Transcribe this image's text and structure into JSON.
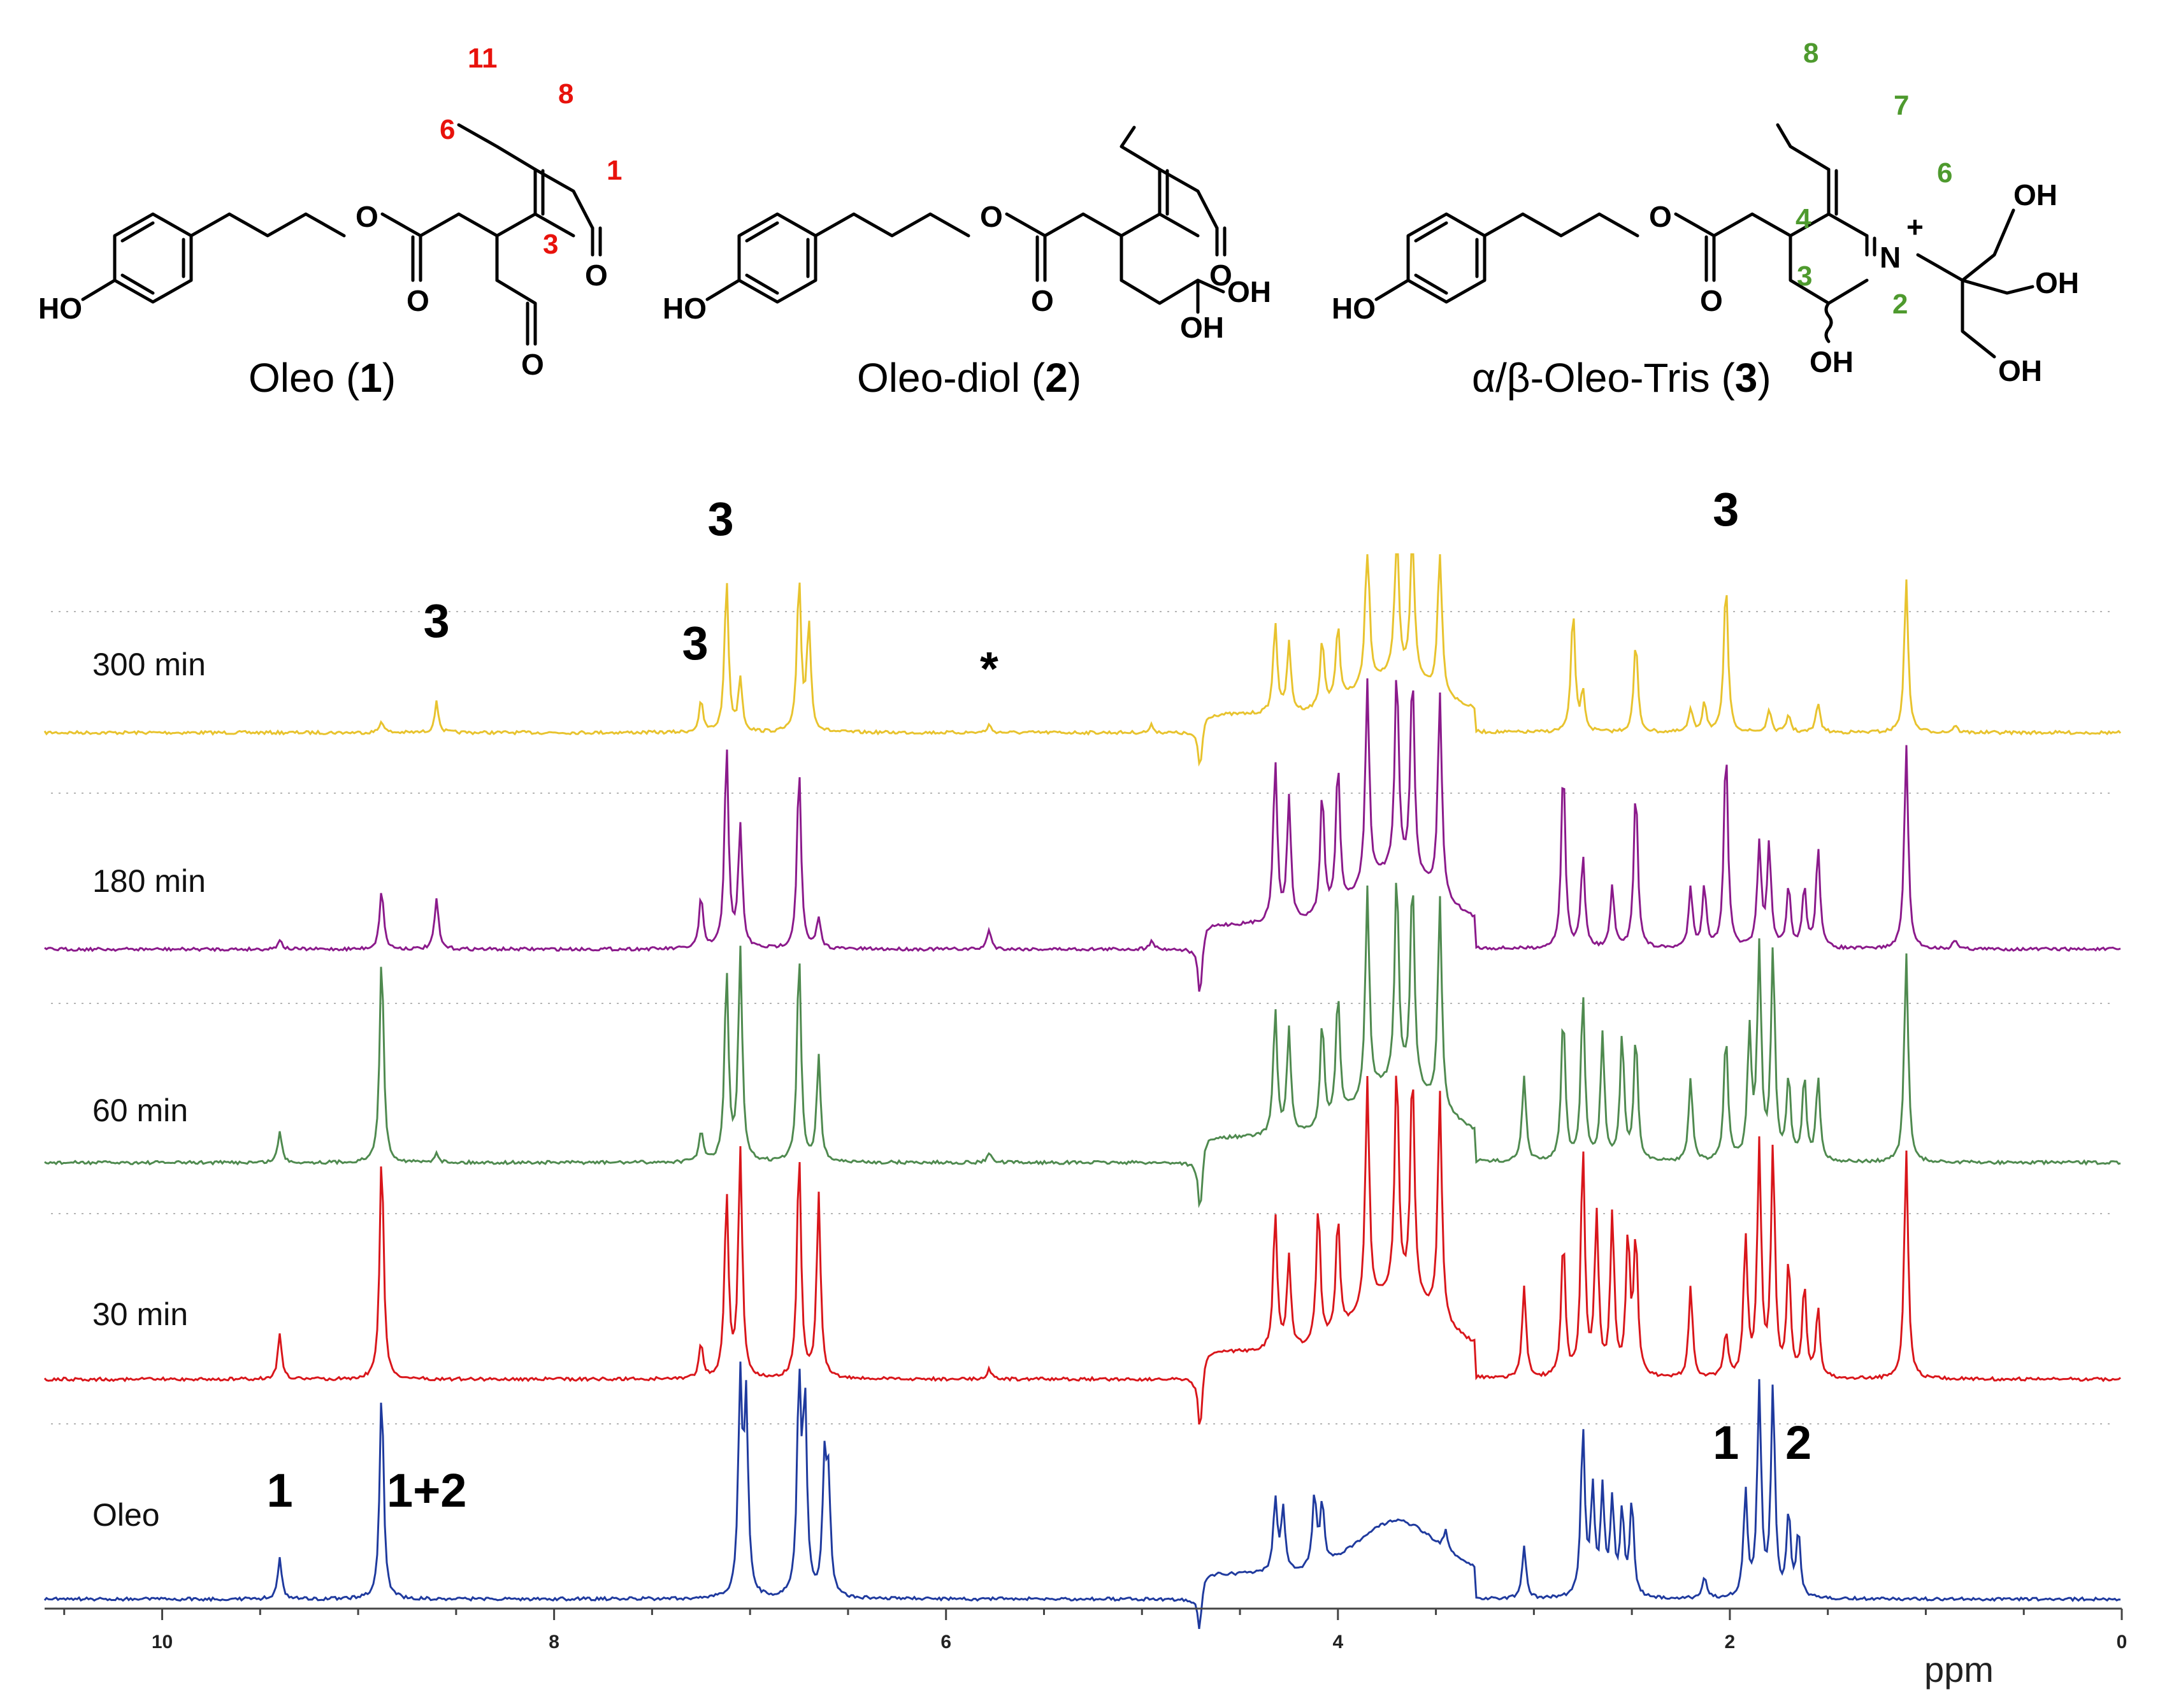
{
  "structures": [
    {
      "label_pre": "Oleo (",
      "label_num": "1",
      "label_post": ")"
    },
    {
      "label_pre": "Oleo-diol (",
      "label_num": "2",
      "label_post": ")"
    },
    {
      "label_pre": "α/β-Oleo-Tris (",
      "label_num": "3",
      "label_post": ")"
    }
  ],
  "atoms": {
    "ho": "HO",
    "oh": "OH",
    "o": "O",
    "n": "N",
    "plus": "+"
  },
  "oleo_numbering": [
    "11",
    "8",
    "6",
    "1",
    "3"
  ],
  "tris_numbering": [
    "8",
    "7",
    "6",
    "4",
    "3",
    "2"
  ],
  "colors": {
    "numbering_red": "#e8120c",
    "numbering_green": "#4e9a2e",
    "trace_300": "#e8c32e",
    "trace_180": "#8b1a8b",
    "trace_60": "#4f8a4f",
    "trace_30": "#d9161b",
    "trace_oleo": "#1f3a9e"
  },
  "chart_data": {
    "type": "line",
    "xlabel": "ppm",
    "xlim": [
      10.6,
      0
    ],
    "x_reversed": true,
    "x_ticks": [
      "10",
      "8",
      "6",
      "4",
      "2",
      "0"
    ],
    "x_tick_values": [
      10,
      8,
      6,
      4,
      2,
      0
    ],
    "grid": "dotted horizontal",
    "series": [
      {
        "name": "300 min",
        "color": "#e8c32e",
        "peaks": [
          [
            8.88,
            0.08
          ],
          [
            8.6,
            0.2
          ],
          [
            7.25,
            0.2
          ],
          [
            7.12,
            1.0
          ],
          [
            7.05,
            0.35
          ],
          [
            6.75,
            1.0
          ],
          [
            6.7,
            0.7
          ],
          [
            5.78,
            0.05
          ],
          [
            4.95,
            0.05
          ],
          [
            4.7,
            -0.3
          ],
          [
            4.32,
            0.6
          ],
          [
            4.25,
            0.45
          ],
          [
            4.08,
            0.45
          ],
          [
            4.0,
            0.5
          ],
          [
            3.85,
            1.0
          ],
          [
            3.7,
            1.0
          ],
          [
            3.62,
            1.0
          ],
          [
            3.48,
            1.0
          ],
          [
            2.8,
            0.8
          ],
          [
            2.75,
            0.25
          ],
          [
            2.48,
            0.6
          ],
          [
            2.2,
            0.15
          ],
          [
            2.13,
            0.2
          ],
          [
            2.02,
            1.0
          ],
          [
            1.8,
            0.15
          ],
          [
            1.7,
            0.12
          ],
          [
            1.55,
            0.2
          ],
          [
            1.1,
            1.0
          ],
          [
            0.85,
            0.05
          ]
        ]
      },
      {
        "name": "180 min",
        "color": "#8b1a8b",
        "peaks": [
          [
            9.4,
            0.05
          ],
          [
            8.88,
            0.3
          ],
          [
            8.6,
            0.25
          ],
          [
            7.25,
            0.25
          ],
          [
            7.12,
            1.0
          ],
          [
            7.05,
            0.6
          ],
          [
            6.75,
            0.9
          ],
          [
            6.65,
            0.15
          ],
          [
            5.78,
            0.1
          ],
          [
            4.95,
            0.05
          ],
          [
            4.7,
            -0.3
          ],
          [
            4.32,
            0.8
          ],
          [
            4.25,
            0.6
          ],
          [
            4.08,
            0.6
          ],
          [
            4.0,
            0.7
          ],
          [
            3.85,
            1.0
          ],
          [
            3.7,
            1.0
          ],
          [
            3.62,
            1.0
          ],
          [
            3.48,
            1.0
          ],
          [
            2.85,
            0.9
          ],
          [
            2.75,
            0.45
          ],
          [
            2.6,
            0.3
          ],
          [
            2.48,
            0.8
          ],
          [
            2.2,
            0.3
          ],
          [
            2.13,
            0.3
          ],
          [
            2.02,
            1.0
          ],
          [
            1.85,
            0.5
          ],
          [
            1.8,
            0.5
          ],
          [
            1.7,
            0.3
          ],
          [
            1.62,
            0.3
          ],
          [
            1.55,
            0.5
          ],
          [
            1.1,
            1.0
          ],
          [
            0.85,
            0.05
          ]
        ]
      },
      {
        "name": "60 min",
        "color": "#4f8a4f",
        "peaks": [
          [
            9.4,
            0.15
          ],
          [
            8.88,
            1.0
          ],
          [
            8.6,
            0.05
          ],
          [
            7.25,
            0.15
          ],
          [
            7.12,
            0.9
          ],
          [
            7.05,
            1.0
          ],
          [
            6.75,
            1.0
          ],
          [
            6.65,
            0.5
          ],
          [
            5.78,
            0.05
          ],
          [
            4.7,
            -0.3
          ],
          [
            4.32,
            0.6
          ],
          [
            4.25,
            0.5
          ],
          [
            4.08,
            0.5
          ],
          [
            4.0,
            0.6
          ],
          [
            3.85,
            1.0
          ],
          [
            3.7,
            1.0
          ],
          [
            3.62,
            1.0
          ],
          [
            3.48,
            1.0
          ],
          [
            3.05,
            0.4
          ],
          [
            2.85,
            0.7
          ],
          [
            2.75,
            0.8
          ],
          [
            2.65,
            0.6
          ],
          [
            2.55,
            0.6
          ],
          [
            2.48,
            0.6
          ],
          [
            2.2,
            0.4
          ],
          [
            2.02,
            0.6
          ],
          [
            1.9,
            0.6
          ],
          [
            1.85,
            1.0
          ],
          [
            1.78,
            1.0
          ],
          [
            1.7,
            0.4
          ],
          [
            1.62,
            0.4
          ],
          [
            1.55,
            0.4
          ],
          [
            1.1,
            1.0
          ]
        ]
      },
      {
        "name": "30 min",
        "color": "#d9161b",
        "peaks": [
          [
            9.4,
            0.2
          ],
          [
            8.88,
            1.0
          ],
          [
            7.25,
            0.15
          ],
          [
            7.12,
            0.8
          ],
          [
            7.05,
            1.0
          ],
          [
            6.75,
            1.0
          ],
          [
            6.65,
            0.8
          ],
          [
            5.78,
            0.05
          ],
          [
            4.7,
            -0.3
          ],
          [
            4.32,
            0.6
          ],
          [
            4.25,
            0.4
          ],
          [
            4.1,
            0.6
          ],
          [
            4.0,
            0.5
          ],
          [
            3.85,
            1.0
          ],
          [
            3.7,
            1.0
          ],
          [
            3.62,
            1.0
          ],
          [
            3.48,
            1.0
          ],
          [
            3.05,
            0.4
          ],
          [
            2.85,
            0.6
          ],
          [
            2.75,
            1.0
          ],
          [
            2.68,
            0.7
          ],
          [
            2.6,
            0.7
          ],
          [
            2.52,
            0.6
          ],
          [
            2.48,
            0.6
          ],
          [
            2.2,
            0.4
          ],
          [
            2.02,
            0.2
          ],
          [
            1.92,
            0.6
          ],
          [
            1.85,
            1.0
          ],
          [
            1.78,
            1.0
          ],
          [
            1.7,
            0.5
          ],
          [
            1.62,
            0.4
          ],
          [
            1.55,
            0.3
          ],
          [
            1.1,
            1.0
          ]
        ]
      },
      {
        "name": "Oleo",
        "color": "#1f3a9e",
        "peaks": [
          [
            9.4,
            0.2
          ],
          [
            8.88,
            1.0
          ],
          [
            7.05,
            1.0
          ],
          [
            7.02,
            0.9
          ],
          [
            6.75,
            1.0
          ],
          [
            6.72,
            0.9
          ],
          [
            6.62,
            0.6
          ],
          [
            6.6,
            0.5
          ],
          [
            4.7,
            -0.2
          ],
          [
            4.32,
            0.35
          ],
          [
            4.28,
            0.3
          ],
          [
            4.12,
            0.35
          ],
          [
            4.08,
            0.3
          ],
          [
            3.45,
            0.1
          ],
          [
            3.05,
            0.25
          ],
          [
            2.75,
            0.8
          ],
          [
            2.7,
            0.5
          ],
          [
            2.65,
            0.5
          ],
          [
            2.6,
            0.45
          ],
          [
            2.55,
            0.4
          ],
          [
            2.5,
            0.45
          ],
          [
            2.13,
            0.1
          ],
          [
            1.92,
            0.5
          ],
          [
            1.85,
            1.0
          ],
          [
            1.78,
            1.0
          ],
          [
            1.7,
            0.4
          ],
          [
            1.65,
            0.3
          ]
        ]
      }
    ],
    "annotations": [
      {
        "series": "300 min",
        "ppm": 8.6,
        "text": "3"
      },
      {
        "series": "300 min",
        "ppm": 7.28,
        "text": "3"
      },
      {
        "series": "300 min",
        "ppm": 7.15,
        "text": "3"
      },
      {
        "series": "300 min",
        "ppm": 5.78,
        "text": "*"
      },
      {
        "series": "300 min",
        "ppm": 2.02,
        "text": "3"
      },
      {
        "series": "Oleo",
        "ppm": 9.4,
        "text": "1"
      },
      {
        "series": "Oleo",
        "ppm": 8.65,
        "text": "1+2"
      },
      {
        "series": "Oleo",
        "ppm": 2.02,
        "text": "1"
      },
      {
        "series": "Oleo",
        "ppm": 1.65,
        "text": "2"
      }
    ]
  }
}
